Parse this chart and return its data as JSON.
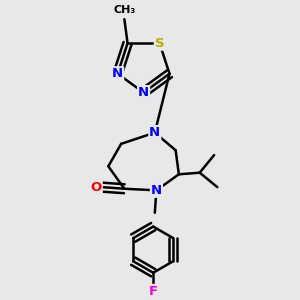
{
  "background_color": "#e8e8e8",
  "atom_colors": {
    "N": "#0000ff",
    "O": "#ff0000",
    "S": "#bbaa00",
    "F": "#ff00cc"
  },
  "bond_color": "#000000",
  "lw": 1.8
}
